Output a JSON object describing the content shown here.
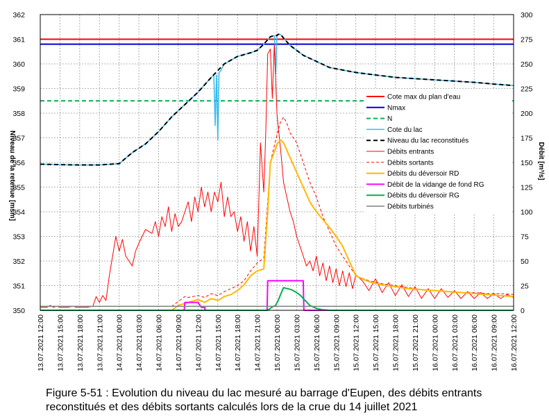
{
  "chart_data": {
    "type": "line",
    "caption": [
      "Figure 5-51 : Evolution du niveau du lac mesuré au barrage d'Eupen, des débits entrants",
      "reconstitués et des débits sortants calculés lors de la crue du 14 juillet 2021"
    ],
    "ylabel_left": "Niveau de la retenue [msm]",
    "ylabel_right": "Débit [m³/s]",
    "ylim_left": [
      350,
      362
    ],
    "ylim_right": [
      0,
      300
    ],
    "yticks_left": [
      350,
      351,
      352,
      353,
      354,
      355,
      356,
      357,
      358,
      359,
      360,
      361,
      362
    ],
    "yticks_right": [
      0,
      25,
      50,
      75,
      100,
      125,
      150,
      175,
      200,
      225,
      250,
      275,
      300
    ],
    "x_unit": "hours since 13.07.2021 12:00",
    "xlim": [
      0,
      72
    ],
    "xtick_labels": [
      "13.07.2021 12:00",
      "13.07.2021 15:00",
      "13.07.2021 18:00",
      "13.07.2021 21:00",
      "14.07.2021 00:00",
      "14.07.2021 03:00",
      "14.07.2021 06:00",
      "14.07.2021 09:00",
      "14.07.2021 12:00",
      "14.07.2021 15:00",
      "14.07.2021 18:00",
      "14.07.2021 21:00",
      "15.07.2021 00:00",
      "15.07.2021 03:00",
      "15.07.2021 06:00",
      "15.07.2021 09:00",
      "15.07.2021 12:00",
      "15.07.2021 15:00",
      "15.07.2021 18:00",
      "15.07.2021 21:00",
      "16.07.2021 00:00",
      "16.07.2021 03:00",
      "16.07.2021 06:00",
      "16.07.2021 09:00",
      "16.07.2021 12:00"
    ],
    "series": [
      {
        "name": "Cote max du plan d'eau",
        "axis": "left",
        "color": "#ff0000",
        "style": "solid",
        "width": 2,
        "x": [
          0,
          72
        ],
        "y": [
          361.0,
          361.0
        ]
      },
      {
        "name": "Nmax",
        "axis": "left",
        "color": "#0000cc",
        "style": "solid",
        "width": 2,
        "x": [
          0,
          72
        ],
        "y": [
          360.8,
          360.8
        ]
      },
      {
        "name": "N",
        "axis": "left",
        "color": "#00b050",
        "style": "dashed",
        "width": 2,
        "x": [
          0,
          72
        ],
        "y": [
          358.5,
          358.5
        ]
      },
      {
        "name": "Cote du lac",
        "axis": "left",
        "color": "#33bbee",
        "style": "solid",
        "width": 1.5,
        "x": [
          0,
          3,
          6,
          9,
          12,
          14,
          16,
          18,
          20,
          22,
          24,
          26,
          26.4,
          26.6,
          26.8,
          27,
          27.2,
          27.4,
          28,
          30,
          32,
          33,
          34,
          35,
          35.6,
          35.8,
          36,
          36.2,
          36.4,
          36.6,
          37,
          38,
          40,
          42,
          44,
          46,
          48,
          51,
          54,
          57,
          60,
          63,
          66,
          69,
          72
        ],
        "y": [
          355.93,
          355.91,
          355.9,
          355.9,
          355.95,
          356.4,
          356.75,
          357.25,
          357.85,
          358.35,
          358.85,
          359.45,
          359.55,
          357.5,
          359.55,
          356.9,
          359.65,
          359.7,
          360.0,
          360.3,
          360.45,
          360.55,
          360.8,
          361.1,
          361.15,
          359.6,
          361.15,
          361.2,
          361.2,
          361.18,
          361.05,
          360.75,
          360.35,
          360.1,
          359.85,
          359.75,
          359.65,
          359.55,
          359.45,
          359.4,
          359.35,
          359.3,
          359.25,
          359.18,
          359.12
        ]
      },
      {
        "name": "Niveau du lac reconstitués",
        "axis": "left",
        "color": "#000000",
        "style": "dashed",
        "width": 2,
        "x": [
          0,
          3,
          6,
          9,
          12,
          14,
          16,
          18,
          20,
          22,
          24,
          26,
          28,
          30,
          32,
          33,
          34,
          35,
          35.6,
          36,
          36.2,
          36.6,
          37,
          38,
          40,
          42,
          44,
          46,
          48,
          51,
          54,
          57,
          60,
          63,
          66,
          69,
          72
        ],
        "y": [
          355.93,
          355.91,
          355.9,
          355.9,
          355.95,
          356.4,
          356.75,
          357.25,
          357.85,
          358.35,
          358.85,
          359.45,
          360.0,
          360.3,
          360.45,
          360.55,
          360.8,
          361.1,
          361.15,
          361.15,
          361.2,
          361.18,
          361.05,
          360.75,
          360.35,
          360.1,
          359.85,
          359.75,
          359.65,
          359.55,
          359.45,
          359.4,
          359.35,
          359.3,
          359.25,
          359.18,
          359.12
        ]
      },
      {
        "name": "Débits entrants",
        "axis": "right",
        "color": "#ff0000",
        "style": "solid",
        "width": 1,
        "x": [
          0,
          1,
          1.5,
          2,
          2.5,
          3,
          4,
          5,
          5.5,
          6,
          7,
          8,
          8.5,
          9,
          9.5,
          10,
          10.5,
          11,
          11.5,
          12,
          12.5,
          13,
          13.5,
          14,
          14.5,
          15,
          15.5,
          16,
          16.5,
          17,
          17.5,
          18,
          18.5,
          19,
          19.5,
          20,
          20.5,
          21,
          21.5,
          22,
          22.5,
          23,
          23.5,
          24,
          24.5,
          25,
          25.5,
          26,
          26.5,
          27,
          27.5,
          28,
          28.5,
          29,
          29.5,
          30,
          30.5,
          31,
          31.5,
          32,
          32.5,
          33,
          33.5,
          34,
          34.3,
          34.6,
          35,
          35.3,
          35.6,
          36,
          36.3,
          36.6,
          37,
          37.5,
          38,
          38.5,
          39,
          39.5,
          40,
          40.5,
          41,
          41.5,
          42,
          42.5,
          43,
          43.5,
          44,
          44.5,
          45,
          45.5,
          46,
          46.5,
          47,
          47.5,
          48,
          49,
          50,
          51,
          52,
          53,
          54,
          55,
          56,
          57,
          58,
          59,
          60,
          61,
          62,
          63,
          64,
          65,
          66,
          67,
          68,
          69,
          70,
          71,
          72
        ],
        "y": [
          3,
          3,
          5,
          3,
          4,
          3,
          3,
          4,
          3,
          3,
          3,
          4,
          14,
          8,
          15,
          10,
          35,
          55,
          75,
          60,
          72,
          55,
          50,
          45,
          60,
          68,
          75,
          82,
          80,
          78,
          90,
          75,
          95,
          85,
          105,
          80,
          98,
          85,
          90,
          100,
          110,
          90,
          115,
          100,
          125,
          105,
          120,
          100,
          120,
          110,
          130,
          95,
          115,
          95,
          100,
          80,
          95,
          70,
          90,
          60,
          85,
          55,
          170,
          120,
          180,
          260,
          265,
          215,
          270,
          200,
          180,
          160,
          130,
          115,
          100,
          90,
          75,
          65,
          55,
          45,
          50,
          40,
          55,
          35,
          48,
          30,
          45,
          28,
          42,
          25,
          40,
          24,
          38,
          22,
          36,
          30,
          20,
          32,
          18,
          28,
          15,
          26,
          14,
          24,
          12,
          22,
          12,
          22,
          13,
          20,
          12,
          19,
          12,
          18,
          12,
          17,
          12,
          16,
          13
        ]
      },
      {
        "name": "Débits sortants",
        "axis": "right",
        "color": "#ff0000",
        "style": "dashed",
        "width": 1,
        "x": [
          0,
          20,
          22,
          22.5,
          24,
          25,
          26,
          27,
          28,
          29,
          30,
          31,
          32,
          33,
          34,
          35,
          36,
          36.5,
          37,
          37.5,
          38,
          39,
          40,
          41,
          42,
          43,
          44,
          45,
          46,
          47,
          48,
          50,
          52,
          54,
          56,
          58,
          60,
          62,
          64,
          66,
          68,
          70,
          72
        ],
        "y": [
          4,
          4,
          14,
          13,
          15,
          13,
          17,
          15,
          19,
          22,
          25,
          30,
          40,
          48,
          53,
          150,
          178,
          190,
          196,
          190,
          180,
          170,
          150,
          130,
          115,
          95,
          80,
          65,
          55,
          45,
          35,
          30,
          27,
          25,
          23,
          21,
          20,
          19,
          18,
          18,
          17,
          17,
          16
        ]
      },
      {
        "name": "Débits du déversoir RD",
        "axis": "right",
        "color": "#ffb800",
        "style": "solid",
        "width": 2,
        "x": [
          0,
          20,
          21,
          22,
          23,
          24,
          25,
          26,
          27,
          28,
          29,
          30,
          31,
          32,
          33,
          34,
          34.6,
          35,
          36,
          36.5,
          37,
          38,
          39,
          40,
          41,
          42,
          43,
          44,
          45,
          46,
          47,
          48,
          50,
          52,
          54,
          56,
          58,
          60,
          62,
          64,
          66,
          68,
          70,
          72
        ],
        "y": [
          0,
          0,
          5,
          7,
          9,
          11,
          8,
          12,
          10,
          14,
          16,
          20,
          26,
          35,
          40,
          42,
          100,
          150,
          168,
          173,
          170,
          155,
          140,
          125,
          110,
          100,
          92,
          84,
          75,
          65,
          50,
          35,
          29,
          26,
          24,
          22,
          21,
          20,
          19,
          18,
          17,
          16,
          15,
          14
        ]
      },
      {
        "name": "Débit de la vidange de fond RG",
        "axis": "right",
        "color": "#ff00ff",
        "style": "solid",
        "width": 2,
        "x": [
          0,
          21.9,
          22,
          24,
          24.5,
          25,
          25.1,
          34.5,
          34.6,
          40,
          40.1,
          72
        ],
        "y": [
          0,
          0,
          8,
          8,
          3,
          3,
          0,
          0,
          30,
          30,
          0,
          0
        ]
      },
      {
        "name": "Débits du déversoir RG",
        "axis": "right",
        "color": "#00b050",
        "style": "solid",
        "width": 2,
        "x": [
          0,
          34.6,
          35.2,
          35.8,
          36.2,
          36.5,
          37,
          37.6,
          38.2,
          39,
          39.6,
          40,
          41,
          42,
          43,
          44,
          45,
          46,
          72
        ],
        "y": [
          0,
          0,
          3,
          5,
          10,
          15,
          23,
          22,
          21,
          18,
          15,
          12,
          5,
          2,
          0.5,
          0,
          0,
          0,
          0
        ]
      },
      {
        "name": "Débits turbinés",
        "axis": "right",
        "color": "#808080",
        "style": "solid",
        "width": 1.5,
        "x": [
          0,
          72
        ],
        "y": [
          4,
          4
        ]
      }
    ]
  }
}
